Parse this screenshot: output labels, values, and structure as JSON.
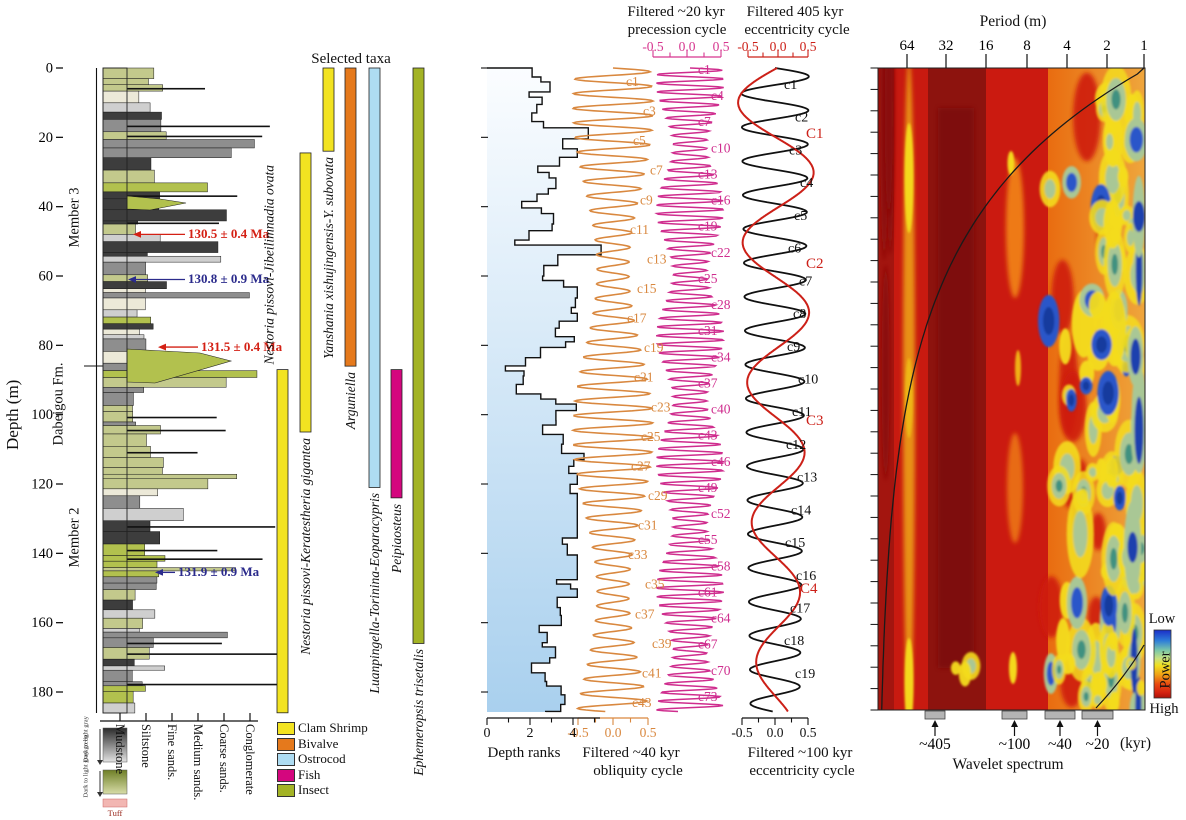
{
  "chart_data": [
    {
      "type": "bar",
      "name": "lithologic-column",
      "ylabel": "Depth (m)",
      "depth_ticks": [
        "0",
        "20",
        "40",
        "60",
        "80",
        "100",
        "120",
        "140",
        "160",
        "180"
      ],
      "depth_range_m": [
        0,
        186
      ],
      "members": [
        {
          "label": "Member 3",
          "from_m": 0,
          "to_m": 86
        },
        {
          "label": "Member 2",
          "from_m": 86,
          "to_m": 186
        }
      ],
      "formation": "Dabeigou Fm.",
      "age_markers": [
        {
          "label": "130.5 ± 0.4 Ma",
          "depth_m": 48,
          "color": "#d42014"
        },
        {
          "label": "130.8 ± 0.9 Ma",
          "depth_m": 61,
          "color": "#2b2b8c"
        },
        {
          "label": "131.5 ± 0.4 Ma",
          "depth_m": 80.5,
          "color": "#d42014"
        },
        {
          "label": "131.9 ± 0.9 Ma",
          "depth_m": 145.5,
          "color": "#2b2b8c"
        }
      ],
      "grain_size_labels": [
        "Mudstone",
        "Siltstone",
        "Fine sands.",
        "Medium sands.",
        "Coarse sands.",
        "Conglomerate"
      ],
      "color_notes": [
        {
          "label": "Dark to light gray",
          "swatch": "gray-gradient"
        },
        {
          "label": "Dark to light gray green",
          "swatch": "green-gradient"
        },
        {
          "label": "Tuff",
          "swatch": "#f2b6b2"
        }
      ]
    },
    {
      "type": "bar",
      "name": "selected-taxa",
      "title": "Selected taxa",
      "bars": [
        {
          "taxon": "Nestoria pissovi-Jibeilimnadia ovata",
          "group": "Clam Shrimp",
          "color": "#f2e321",
          "from_m": 87,
          "to_m": 186,
          "label_pos": "above"
        },
        {
          "taxon": "Nestoria pissovi-Keratestheria gigantea",
          "group": "Clam Shrimp",
          "color": "#f2e321",
          "from_m": 24.5,
          "to_m": 105,
          "label_pos": "below"
        },
        {
          "taxon": "Yanshania xishujingensis-Y. subovata",
          "group": "Clam Shrimp",
          "color": "#f2e321",
          "from_m": 0,
          "to_m": 24,
          "label_pos": "below"
        },
        {
          "taxon": "Arguniella",
          "group": "Bivalve",
          "color": "#e5791c",
          "from_m": 0,
          "to_m": 86,
          "label_pos": "below"
        },
        {
          "taxon": "Luanpingella-Torinina-Eoparacypris",
          "group": "Ostrocod",
          "color": "#aedcf2",
          "from_m": 0,
          "to_m": 121,
          "label_pos": "below"
        },
        {
          "taxon": "Peipiaosteus",
          "group": "Fish",
          "color": "#d4067e",
          "from_m": 87,
          "to_m": 124,
          "label_pos": "below"
        },
        {
          "taxon": "Ephemeropsis trisetalis",
          "group": "Insect",
          "color": "#a3b325",
          "from_m": 0,
          "to_m": 166,
          "label_pos": "below"
        }
      ],
      "legend": [
        {
          "label": "Clam Shrimp",
          "color": "#f2e321"
        },
        {
          "label": "Bivalve",
          "color": "#e5791c"
        },
        {
          "label": "Ostrocod",
          "color": "#aedcf2"
        },
        {
          "label": "Fish",
          "color": "#d4067e"
        },
        {
          "label": "Insect",
          "color": "#a3b325"
        }
      ]
    },
    {
      "type": "line",
      "name": "cyclostratigraphy",
      "depth_range_m": [
        0,
        186
      ],
      "series": [
        {
          "name": "Depth ranks",
          "color": "#111111",
          "caption": "Depth ranks",
          "axis": {
            "position": "bottom",
            "ticks": [
              "0",
              "2",
              "4"
            ]
          }
        },
        {
          "name": "Filtered ~40 kyr obliquity cycle",
          "color": "#d9883f",
          "cycles": 44,
          "caption_lines": [
            "Filtered ~40 kyr",
            "obliquity cycle"
          ],
          "axis": {
            "position": "bottom",
            "ticks": [
              "-0.5",
              "0.0",
              "0.5"
            ]
          },
          "labels": [
            "c1",
            "c3",
            "c5",
            "c7",
            "c9",
            "c11",
            "c13",
            "c15",
            "c17",
            "c19",
            "c21",
            "c23",
            "c25",
            "c27",
            "c29",
            "c31",
            "c33",
            "c35",
            "c37",
            "c39",
            "c41",
            "c43"
          ]
        },
        {
          "name": "Filtered ~20 kyr precession cycle",
          "color": "#cf2d8e",
          "cycles": 74,
          "caption_lines": [
            "Filtered ~20 kyr",
            "precession cycle"
          ],
          "axis": {
            "position": "top",
            "ticks": [
              "-0.5",
              "0.0",
              "0.5"
            ]
          },
          "labels": [
            "c1",
            "c4",
            "c7",
            "c10",
            "c13",
            "c16",
            "c19",
            "c22",
            "c25",
            "c28",
            "c31",
            "c34",
            "c37",
            "c40",
            "c43",
            "c46",
            "c49",
            "c52",
            "c55",
            "c58",
            "c61",
            "c64",
            "c67",
            "c70",
            "c73"
          ]
        },
        {
          "name": "Filtered ~100 kyr eccentricity cycle",
          "color": "#111111",
          "cycles": 19,
          "caption_lines": [
            "Filtered ~100 kyr",
            "eccentricity cycle"
          ],
          "axis": {
            "position": "bottom",
            "ticks": [
              "-0.5",
              "0.0",
              "0.5"
            ]
          },
          "labels": [
            "c1",
            "c2",
            "c3",
            "c4",
            "c5",
            "c6",
            "c7",
            "c8",
            "c9",
            "c10",
            "c11",
            "c12",
            "c13",
            "c14",
            "c15",
            "c16",
            "c17",
            "c18",
            "c19"
          ]
        },
        {
          "name": "Filtered 405 kyr eccentricity cycle",
          "color": "#cc2018",
          "cycles": 4.6,
          "caption_lines": [
            "Filtered 405 kyr",
            "eccentricity cycle"
          ],
          "axis": {
            "position": "top",
            "ticks": [
              "-0.5",
              "0.0",
              "0.5"
            ]
          },
          "labels": [
            "C1",
            "C2",
            "C3",
            "C4"
          ]
        }
      ]
    },
    {
      "type": "heatmap",
      "name": "wavelet-spectrum",
      "caption": "Wavelet spectrum",
      "x_axis": {
        "label": "Period (m)",
        "ticks": [
          "64",
          "32",
          "16",
          "8",
          "4",
          "2",
          "1"
        ]
      },
      "colorbar": {
        "top_label": "Low",
        "bottom_label": "High",
        "axis_label": "Power"
      },
      "cycle_markers": [
        {
          "label": "~405"
        },
        {
          "label": "~100"
        },
        {
          "label": "~40"
        },
        {
          "label": "~20"
        }
      ],
      "unit_suffix": "(kyr)",
      "power_scale": [
        "low=blue",
        "high=red"
      ]
    }
  ]
}
